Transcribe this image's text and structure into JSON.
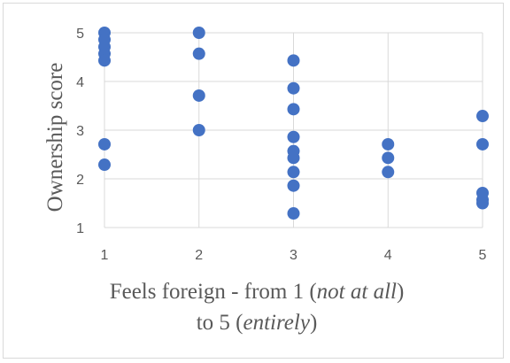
{
  "chart_data": {
    "type": "scatter",
    "ylabel": "Ownership score",
    "xlabel_parts": {
      "line1_prefix": "Feels foreign - from 1 (",
      "line1_italic": "not at all",
      "line1_suffix": ")",
      "line2_prefix": "to 5 (",
      "line2_italic": "entirely",
      "line2_suffix": ")"
    },
    "xlim": [
      1,
      5
    ],
    "ylim": [
      1,
      5
    ],
    "x_ticks": [
      "1",
      "2",
      "3",
      "4",
      "5"
    ],
    "y_ticks": [
      "1",
      "2",
      "3",
      "4",
      "5"
    ],
    "grid": true,
    "marker_color": "#4472C4",
    "gridline_color": "#d9d9d9",
    "points": [
      {
        "x": 1,
        "y": 5.0
      },
      {
        "x": 1,
        "y": 4.86
      },
      {
        "x": 1,
        "y": 4.71
      },
      {
        "x": 1,
        "y": 4.57
      },
      {
        "x": 1,
        "y": 4.43
      },
      {
        "x": 1,
        "y": 2.71
      },
      {
        "x": 1,
        "y": 2.29
      },
      {
        "x": 2,
        "y": 5.0
      },
      {
        "x": 2,
        "y": 4.57
      },
      {
        "x": 2,
        "y": 3.71
      },
      {
        "x": 2,
        "y": 3.0
      },
      {
        "x": 3,
        "y": 4.43
      },
      {
        "x": 3,
        "y": 3.86
      },
      {
        "x": 3,
        "y": 3.43
      },
      {
        "x": 3,
        "y": 2.86
      },
      {
        "x": 3,
        "y": 2.57
      },
      {
        "x": 3,
        "y": 2.43
      },
      {
        "x": 3,
        "y": 2.14
      },
      {
        "x": 3,
        "y": 1.86
      },
      {
        "x": 3,
        "y": 1.29
      },
      {
        "x": 4,
        "y": 2.71
      },
      {
        "x": 4,
        "y": 2.43
      },
      {
        "x": 4,
        "y": 2.14
      },
      {
        "x": 5,
        "y": 3.29
      },
      {
        "x": 5,
        "y": 2.71
      },
      {
        "x": 5,
        "y": 1.71
      },
      {
        "x": 5,
        "y": 1.57
      },
      {
        "x": 5,
        "y": 1.5
      }
    ]
  }
}
